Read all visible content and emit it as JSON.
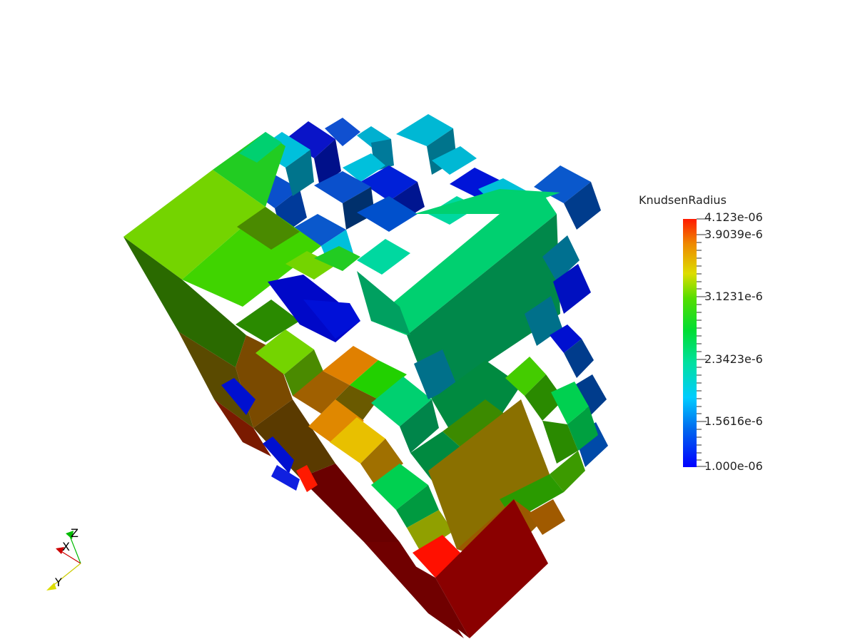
{
  "scalar_bar": {
    "title": "KnudsenRadius",
    "labels": [
      "4.123e-06",
      "3.9039e-6",
      "3.1231e-6",
      "2.3423e-6",
      "1.5616e-6",
      "1.000e-06"
    ],
    "gradient": [
      "#0000ff",
      "#0066ee",
      "#00ccff",
      "#00e0a0",
      "#00dd33",
      "#55dd00",
      "#dddd00",
      "#ee8800",
      "#ff1a00"
    ]
  },
  "orientation_axes": {
    "x_label": "X",
    "y_label": "Y",
    "z_label": "Z",
    "x_color": "#cc0000",
    "y_color": "#dddd00",
    "z_color": "#00bb00"
  }
}
